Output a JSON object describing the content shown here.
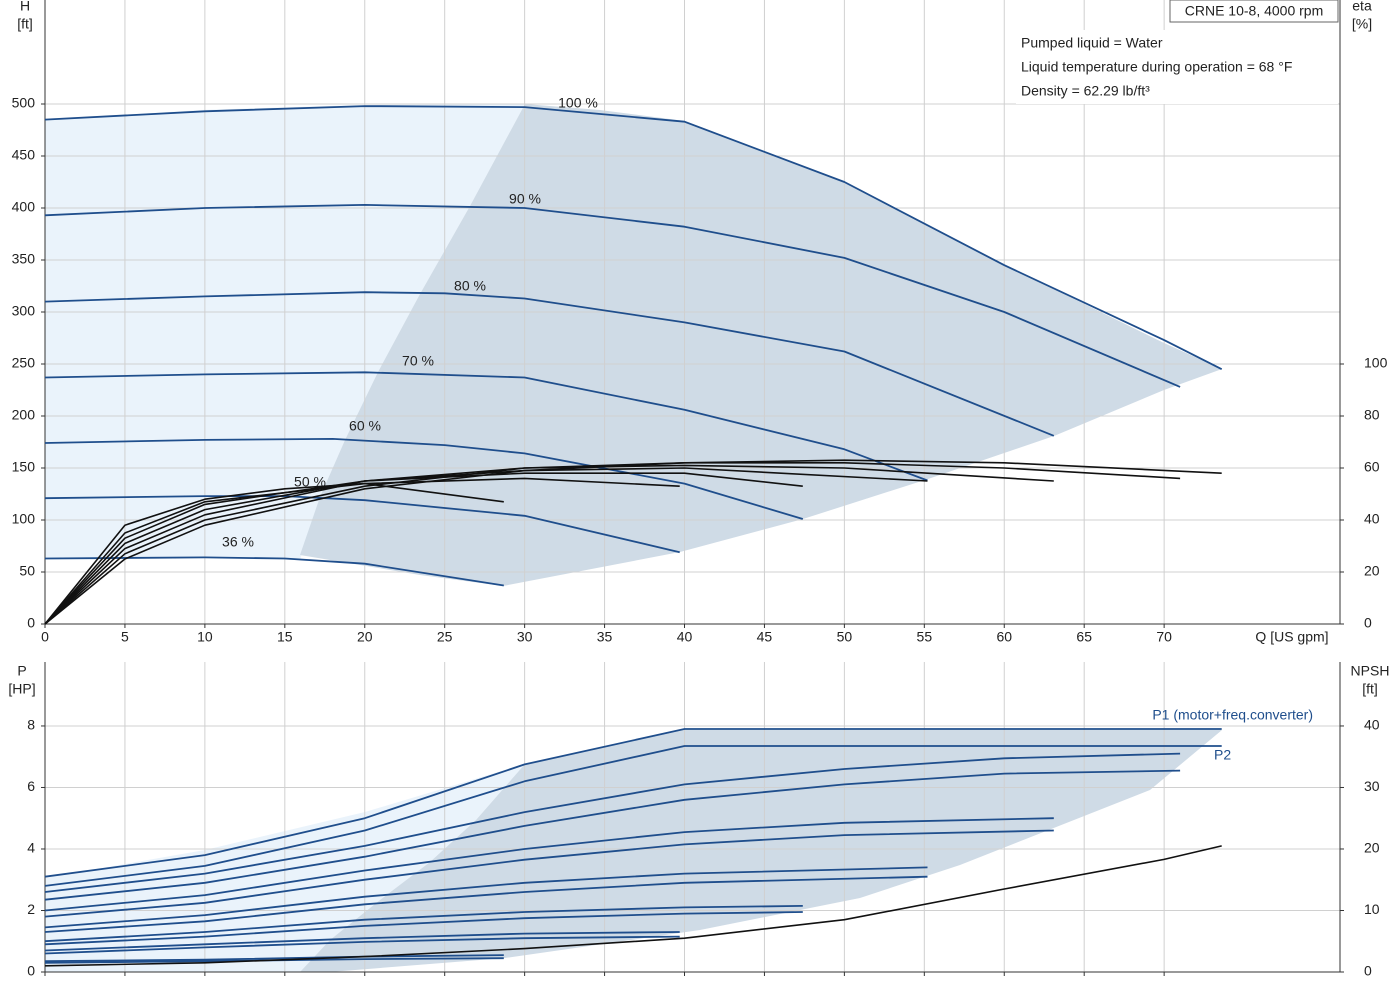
{
  "chart_data": [
    {
      "type": "line",
      "info": {
        "model": "CRNE 10-8, 4000 rpm",
        "lines": [
          "Pumped liquid = Water",
          "Liquid temperature during operation = 68 °F",
          "Density = 62.29 lb/ft³"
        ]
      },
      "y_label": "H",
      "y_unit": "[ft]",
      "y2_label": "eta",
      "y2_unit": "[%]",
      "x_label": "Q [US gpm]",
      "xlim": [
        0,
        81
      ],
      "xticks": [
        0,
        5,
        10,
        15,
        20,
        25,
        30,
        35,
        40,
        45,
        50,
        55,
        60,
        65,
        70
      ],
      "ylim": [
        0,
        600
      ],
      "yticks": [
        0,
        50,
        100,
        150,
        200,
        250,
        300,
        350,
        400,
        450,
        500
      ],
      "y2lim": [
        0,
        240
      ],
      "y2ticks": [
        0,
        20,
        40,
        60,
        80,
        100
      ],
      "grid": true,
      "series": [
        {
          "name": "100 %",
          "color": "#1f4e8c",
          "x": [
            0,
            10,
            20,
            30,
            40,
            50,
            60,
            70,
            73.6
          ],
          "values": [
            485,
            493,
            498,
            497,
            483,
            425,
            345,
            273,
            245
          ]
        },
        {
          "name": "90 %",
          "color": "#1f4e8c",
          "x": [
            0,
            10,
            20,
            30,
            40,
            50,
            60,
            71
          ],
          "values": [
            393,
            400,
            403,
            400,
            382,
            352,
            300,
            228
          ]
        },
        {
          "name": "80 %",
          "color": "#1f4e8c",
          "x": [
            0,
            10,
            20,
            25,
            30,
            40,
            50,
            63.1
          ],
          "values": [
            310,
            315,
            319,
            318,
            313,
            290,
            262,
            181
          ]
        },
        {
          "name": "70 %",
          "color": "#1f4e8c",
          "x": [
            0,
            10,
            20,
            30,
            40,
            50,
            55.2
          ],
          "values": [
            237,
            240,
            242,
            237,
            206,
            168,
            138
          ]
        },
        {
          "name": "60 %",
          "color": "#1f4e8c",
          "x": [
            0,
            10,
            18,
            25,
            30,
            40,
            47.4
          ],
          "values": [
            174,
            177,
            178,
            172,
            164,
            135,
            101
          ]
        },
        {
          "name": "50 %",
          "color": "#1f4e8c",
          "x": [
            0,
            10,
            15,
            20,
            30,
            39.7
          ],
          "values": [
            121,
            123,
            123,
            119,
            104,
            69
          ]
        },
        {
          "name": "36 %",
          "color": "#1f4e8c",
          "x": [
            0,
            10,
            15,
            20,
            28.7
          ],
          "values": [
            63,
            64,
            63,
            58,
            37
          ]
        },
        {
          "color": "#111111",
          "axis": "y2",
          "x": [
            0,
            5,
            10,
            20,
            30,
            40,
            50,
            60,
            73.6
          ],
          "values": [
            0,
            25,
            38,
            52,
            59,
            62,
            63,
            62,
            58
          ]
        },
        {
          "color": "#111111",
          "axis": "y2",
          "x": [
            0,
            5,
            10,
            20,
            30,
            40,
            50,
            60,
            71
          ],
          "values": [
            0,
            27,
            40,
            53,
            60,
            62,
            62,
            60,
            56
          ]
        },
        {
          "color": "#111111",
          "axis": "y2",
          "x": [
            0,
            5,
            10,
            20,
            30,
            40,
            50,
            63.1
          ],
          "values": [
            0,
            29,
            42,
            55,
            60,
            61,
            60,
            55
          ]
        },
        {
          "color": "#111111",
          "axis": "y2",
          "x": [
            0,
            5,
            10,
            20,
            30,
            40,
            55.2
          ],
          "values": [
            0,
            31,
            44,
            55,
            59,
            60,
            55
          ]
        },
        {
          "color": "#111111",
          "axis": "y2",
          "x": [
            0,
            5,
            10,
            20,
            30,
            40,
            47.4
          ],
          "values": [
            0,
            33,
            46,
            55,
            58,
            58,
            53
          ]
        },
        {
          "color": "#111111",
          "axis": "y2",
          "x": [
            0,
            5,
            10,
            20,
            30,
            39.7
          ],
          "values": [
            0,
            35,
            47,
            54,
            56,
            53
          ]
        },
        {
          "color": "#111111",
          "axis": "y2",
          "x": [
            0,
            5,
            10,
            15,
            20,
            28.7
          ],
          "values": [
            0,
            38,
            48,
            52,
            54,
            47
          ]
        }
      ]
    },
    {
      "type": "line",
      "y_label": "P",
      "y_unit": "[HP]",
      "y2_label": "NPSH",
      "y2_unit": "[ft]",
      "xlim": [
        0,
        81
      ],
      "xticks": [
        0,
        5,
        10,
        15,
        20,
        25,
        30,
        35,
        40,
        45,
        50,
        55,
        60,
        65,
        70
      ],
      "ylim": [
        0,
        10.08
      ],
      "yticks": [
        0,
        2,
        4,
        6,
        8
      ],
      "y2lim": [
        0,
        50.4
      ],
      "y2ticks": [
        0,
        10,
        20,
        30,
        40
      ],
      "grid": true,
      "series": [
        {
          "name": "P1 (motor+freq.converter)",
          "color": "#1f4e8c",
          "x": [
            0,
            10,
            20,
            30,
            40,
            73.6
          ],
          "values": [
            3.1,
            3.8,
            5.0,
            6.75,
            7.9,
            7.9
          ]
        },
        {
          "color": "#1f4e8c",
          "x": [
            0,
            10,
            20,
            30,
            40,
            50,
            60,
            71
          ],
          "values": [
            2.6,
            3.2,
            4.1,
            5.2,
            6.1,
            6.6,
            6.95,
            7.1
          ]
        },
        {
          "color": "#1f4e8c",
          "x": [
            0,
            10,
            20,
            30,
            40,
            50,
            63.1
          ],
          "values": [
            2.0,
            2.5,
            3.3,
            4.0,
            4.55,
            4.85,
            5.0
          ]
        },
        {
          "color": "#1f4e8c",
          "x": [
            0,
            10,
            20,
            30,
            40,
            55.2
          ],
          "values": [
            1.45,
            1.85,
            2.45,
            2.9,
            3.2,
            3.4
          ]
        },
        {
          "color": "#1f4e8c",
          "x": [
            0,
            10,
            20,
            30,
            40,
            47.4
          ],
          "values": [
            1.0,
            1.3,
            1.7,
            1.95,
            2.1,
            2.15
          ]
        },
        {
          "color": "#1f4e8c",
          "x": [
            0,
            10,
            20,
            30,
            39.7
          ],
          "values": [
            0.7,
            0.9,
            1.1,
            1.25,
            1.3
          ]
        },
        {
          "color": "#1f4e8c",
          "x": [
            0,
            10,
            20,
            28.7
          ],
          "values": [
            0.35,
            0.4,
            0.5,
            0.55
          ]
        },
        {
          "name": "P2",
          "color": "#1f4e8c",
          "x": [
            0,
            10,
            20,
            30,
            40,
            73.6
          ],
          "values": [
            2.8,
            3.45,
            4.6,
            6.2,
            7.35,
            7.35
          ]
        },
        {
          "color": "#1f4e8c",
          "x": [
            0,
            10,
            20,
            30,
            40,
            50,
            60,
            71
          ],
          "values": [
            2.35,
            2.9,
            3.75,
            4.75,
            5.6,
            6.1,
            6.45,
            6.55
          ]
        },
        {
          "color": "#1f4e8c",
          "x": [
            0,
            10,
            20,
            30,
            40,
            50,
            63.1
          ],
          "values": [
            1.8,
            2.25,
            3.0,
            3.65,
            4.15,
            4.45,
            4.6
          ]
        },
        {
          "color": "#1f4e8c",
          "x": [
            0,
            10,
            20,
            30,
            40,
            55.2
          ],
          "values": [
            1.3,
            1.65,
            2.2,
            2.6,
            2.9,
            3.1
          ]
        },
        {
          "color": "#1f4e8c",
          "x": [
            0,
            10,
            20,
            30,
            40,
            47.4
          ],
          "values": [
            0.9,
            1.15,
            1.5,
            1.75,
            1.9,
            1.95
          ]
        },
        {
          "color": "#1f4e8c",
          "x": [
            0,
            10,
            20,
            30,
            39.7
          ],
          "values": [
            0.6,
            0.8,
            0.98,
            1.1,
            1.15
          ]
        },
        {
          "color": "#1f4e8c",
          "x": [
            0,
            10,
            20,
            28.7
          ],
          "values": [
            0.3,
            0.35,
            0.42,
            0.45
          ]
        },
        {
          "color": "#111111",
          "axis": "y2",
          "x": [
            0,
            10,
            20,
            30,
            40,
            50,
            60,
            70,
            73.6
          ],
          "values": [
            1,
            1.5,
            2.5,
            3.8,
            5.5,
            8.5,
            13.5,
            18.3,
            20.5
          ]
        }
      ]
    }
  ]
}
